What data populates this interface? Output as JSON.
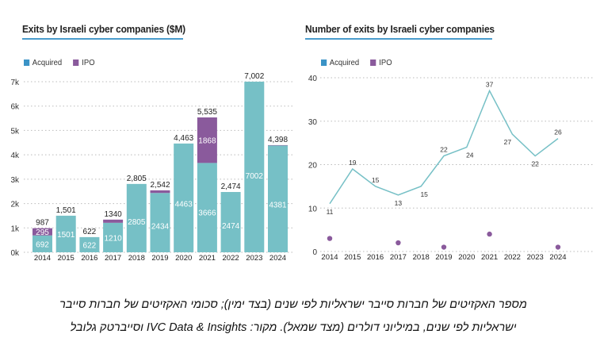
{
  "colors": {
    "acquired": "#76c0c6",
    "ipo": "#8a5a9c",
    "legend_acquired": "#3a93c6",
    "legend_ipo": "#8a5a9c",
    "line": "#76c0c6",
    "title_rule": "#4a9ccc",
    "grid": "#bbbbbb"
  },
  "chart_data": [
    {
      "type": "bar",
      "stacked": true,
      "title": "Exits by Israeli cyber companies ($M)",
      "xlabel": "",
      "ylabel": "",
      "categories": [
        "2014",
        "2015",
        "2016",
        "2017",
        "2018",
        "2019",
        "2020",
        "2021",
        "2022",
        "2023",
        "2024"
      ],
      "series": [
        {
          "name": "Acquired",
          "values": [
            692,
            1501,
            622,
            1210,
            2805,
            2434,
            4463,
            3666,
            2474,
            7002,
            4381
          ]
        },
        {
          "name": "IPO",
          "values": [
            295,
            0,
            0,
            130,
            0,
            108,
            0,
            1868,
            0,
            0,
            17
          ]
        }
      ],
      "segment_labels": {
        "Acquired": [
          "692",
          "1501",
          "622",
          "1210",
          "2805",
          "2434",
          "4463",
          "3666",
          "2474",
          "7002",
          "4381"
        ],
        "IPO": [
          "295",
          "",
          "",
          "",
          "",
          "",
          "",
          "1868",
          "",
          "",
          ""
        ]
      },
      "totals": [
        "987",
        "1,501",
        "622",
        "1340",
        "2,805",
        "2,542",
        "4,463",
        "5,535",
        "2,474",
        "7,002",
        "4,398"
      ],
      "ylim": [
        0,
        7000
      ],
      "yticks": [
        0,
        1000,
        2000,
        3000,
        4000,
        5000,
        6000,
        7000
      ],
      "ytick_labels": [
        "0k",
        "1k",
        "2k",
        "3k",
        "4k",
        "5k",
        "6k",
        "7k"
      ],
      "grid": true,
      "legend": [
        "Acquired",
        "IPO"
      ],
      "legend_position": "top-left"
    },
    {
      "type": "line",
      "title": "Number of exits by Israeli cyber companies",
      "xlabel": "",
      "ylabel": "",
      "x": [
        "2014",
        "2015",
        "2016",
        "2017",
        "2018",
        "2019",
        "2020",
        "2021",
        "2022",
        "2023",
        "2024"
      ],
      "series": [
        {
          "name": "Acquired",
          "style": "line",
          "values": [
            11,
            19,
            15,
            13,
            15,
            22,
            24,
            37,
            27,
            22,
            26
          ]
        },
        {
          "name": "IPO",
          "style": "points",
          "values": [
            3,
            null,
            null,
            2,
            null,
            1,
            null,
            4,
            null,
            null,
            1
          ]
        }
      ],
      "ylim": [
        0,
        40
      ],
      "yticks": [
        0,
        10,
        20,
        30,
        40
      ],
      "ytick_labels": [
        "0",
        "10",
        "20",
        "30",
        "40"
      ],
      "grid": true,
      "legend": [
        "Acquired",
        "IPO"
      ],
      "legend_position": "top-left"
    }
  ],
  "caption": {
    "line1": "מספר האקזיטים של חברות סייבר ישראליות לפי שנים (בצד ימין); סכומי האקזיטים של חברות סייבר",
    "line2": "ישראליות לפי שנים, במיליוני דולרים (מצד שמאל). מקור: IVC Data & Insights וסייברטק גלובל"
  }
}
